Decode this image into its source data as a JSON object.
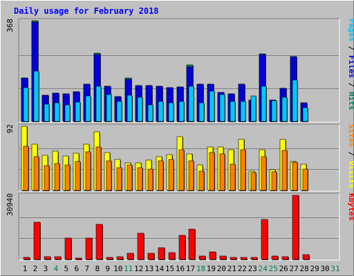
{
  "chart_data": {
    "title": "Daily usage for February 2018",
    "type": "bar",
    "categories": [
      "1",
      "2",
      "3",
      "4",
      "5",
      "6",
      "7",
      "8",
      "9",
      "10",
      "11",
      "12",
      "13",
      "14",
      "15",
      "16",
      "17",
      "18",
      "19",
      "20",
      "21",
      "22",
      "23",
      "24",
      "25",
      "26",
      "27",
      "28",
      "29",
      "30",
      "31"
    ],
    "weekend_days": [
      4,
      11,
      18,
      24,
      25,
      31
    ],
    "colors": {
      "background": "#c0c0c0",
      "hits": "#00805c",
      "files": "#0000d8",
      "pages": "#00c8f8",
      "visits": "#ffff00",
      "sites": "#ff8000",
      "kbytes": "#ff0000",
      "title": "#0000ff",
      "weekend_label": "#00805c"
    },
    "panels": [
      {
        "id": "hits-files-pages",
        "axis_max_label": "368",
        "ylim": [
          0,
          368
        ],
        "right_labels": [
          {
            "text": "Pages",
            "color": "#00c8f8"
          },
          {
            "text": " / ",
            "color": "#000000"
          },
          {
            "text": "Files",
            "color": "#0000d8"
          },
          {
            "text": " / ",
            "color": "#000000"
          },
          {
            "text": "Hits",
            "color": "#00805c"
          }
        ],
        "series": [
          {
            "name": "Hits",
            "values": [
              160,
              368,
              96,
              104,
              100,
              108,
              135,
              250,
              128,
              90,
              160,
              130,
              130,
              128,
              124,
              125,
              207,
              135,
              137,
              106,
              102,
              137,
              78,
              248,
              78,
              120,
              238,
              68,
              0,
              0,
              0
            ]
          },
          {
            "name": "Files",
            "values": [
              160,
              364,
              96,
              104,
              100,
              108,
              135,
              245,
              128,
              90,
              153,
              130,
              130,
              128,
              124,
              125,
              198,
              135,
              137,
              106,
              102,
              137,
              78,
              245,
              78,
              120,
              238,
              68,
              0,
              0,
              0
            ]
          },
          {
            "name": "Pages",
            "values": [
              124,
              185,
              64,
              68,
              60,
              70,
              92,
              128,
              98,
              74,
              96,
              88,
              60,
              72,
              68,
              74,
              128,
              68,
              112,
              98,
              72,
              72,
              92,
              128,
              76,
              88,
              150,
              50,
              0,
              0,
              0
            ]
          }
        ]
      },
      {
        "id": "visits-sites",
        "axis_max_label": "92",
        "ylim": [
          0,
          92
        ],
        "right_labels": [
          {
            "text": "Sites",
            "color": "#ff8000"
          },
          {
            "text": " / ",
            "color": "#000000"
          },
          {
            "text": "Visits",
            "color": "#ffff00"
          }
        ],
        "series": [
          {
            "name": "Visits",
            "values": [
              92,
              66,
              50,
              56,
              49,
              53,
              66,
              84,
              54,
              45,
              40,
              40,
              44,
              48,
              51,
              77,
              52,
              37,
              62,
              62,
              58,
              73,
              28,
              58,
              30,
              73,
              42,
              38,
              0,
              0,
              0
            ]
          },
          {
            "name": "Sites",
            "values": [
              63,
              48,
              36,
              39,
              37,
              42,
              55,
              62,
              43,
              33,
              37,
              33,
              31,
              43,
              45,
              58,
              43,
              28,
              54,
              52,
              38,
              58,
              26,
              48,
              27,
              57,
              41,
              31,
              0,
              0,
              0
            ]
          }
        ]
      },
      {
        "id": "kbytes",
        "axis_max_label": "30940",
        "ylim": [
          0,
          30940
        ],
        "right_labels": [
          {
            "text": "KBytes",
            "color": "#ff0000"
          }
        ],
        "series": [
          {
            "name": "KBytes",
            "values": [
              900,
              17800,
              1300,
              1400,
              10200,
              800,
              10400,
              17000,
              1100,
              1200,
              3100,
              12600,
              2900,
              5700,
              3400,
              11500,
              14500,
              1800,
              3800,
              1800,
              1100,
              1100,
              900,
              19400,
              1500,
              1200,
              30940,
              2300,
              0,
              0,
              0
            ]
          }
        ]
      }
    ]
  }
}
